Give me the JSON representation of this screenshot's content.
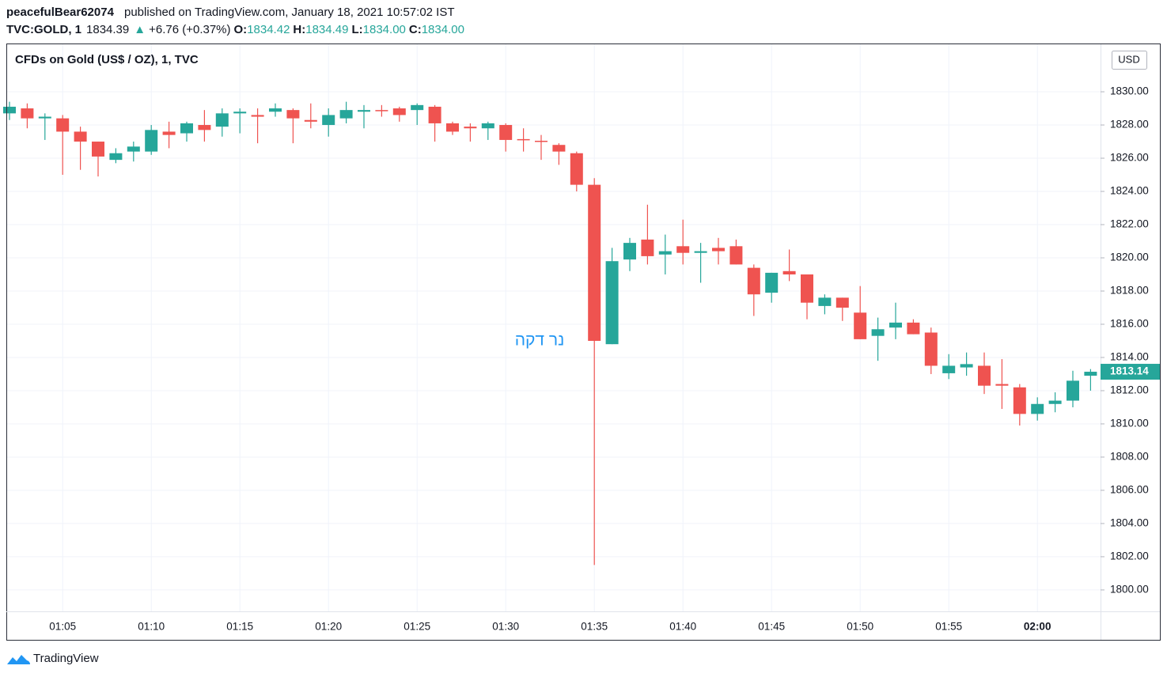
{
  "header": {
    "author": "peacefulBear62074",
    "published": "published on TradingView.com, January 18, 2021 10:57:02 IST",
    "symbol": "TVC:GOLD, 1",
    "price": "1834.39",
    "change": "+6.76 (+0.37%)",
    "ohlc": [
      {
        "key": "O:",
        "value": "1834.42"
      },
      {
        "key": "H:",
        "value": "1834.49"
      },
      {
        "key": "L:",
        "value": "1834.00"
      },
      {
        "key": "C:",
        "value": "1834.00"
      }
    ]
  },
  "footer": "TradingView",
  "chart_data": {
    "type": "candlestick",
    "title": "CFDs on Gold (US$ / OZ), 1, TVC",
    "currency": "USD",
    "annotation": "נר דקה",
    "up_color": "#26a69a",
    "down_color": "#ef5350",
    "grid": true,
    "last_price": 1813.14,
    "categories": [
      null,
      null,
      null,
      "01:05",
      null,
      null,
      null,
      null,
      "01:10",
      null,
      null,
      null,
      null,
      "01:15",
      null,
      null,
      null,
      null,
      "01:20",
      null,
      null,
      null,
      null,
      "01:25",
      null,
      null,
      null,
      null,
      "01:30",
      null,
      null,
      null,
      null,
      "01:35",
      null,
      null,
      null,
      null,
      "01:40",
      null,
      null,
      null,
      null,
      "01:45",
      null,
      null,
      null,
      null,
      "01:50",
      null,
      null,
      null,
      null,
      "01:55",
      null,
      null,
      null,
      null,
      "02:00",
      null,
      null,
      null
    ],
    "series": {
      "open": [
        1828.7,
        1829.0,
        1828.4,
        1828.4,
        1827.6,
        1827.0,
        1825.9,
        1826.4,
        1826.4,
        1827.6,
        1827.5,
        1828.0,
        1827.9,
        1828.7,
        1828.6,
        1828.8,
        1828.9,
        1828.3,
        1828.0,
        1828.4,
        1828.8,
        1828.9,
        1829.0,
        1828.9,
        1829.1,
        1828.1,
        1827.9,
        1827.8,
        1828.0,
        1827.15,
        1827.05,
        1826.8,
        1826.3,
        1824.4,
        1814.8,
        1819.9,
        1821.1,
        1820.2,
        1820.7,
        1820.3,
        1820.6,
        1820.7,
        1819.4,
        1817.9,
        1819.2,
        1819.0,
        1817.1,
        1817.6,
        1816.7,
        1815.3,
        1815.8,
        1816.1,
        1815.5,
        1813.05,
        1813.4,
        1813.5,
        1812.4,
        1812.2,
        1810.6,
        1811.2,
        1811.4,
        1812.9
      ],
      "high": [
        1829.4,
        1829.3,
        1828.7,
        1828.6,
        1827.9,
        1827.0,
        1826.6,
        1827.0,
        1828.0,
        1828.2,
        1828.2,
        1828.9,
        1829.0,
        1829.0,
        1829.0,
        1829.3,
        1829.0,
        1829.3,
        1829.0,
        1829.4,
        1829.2,
        1829.2,
        1829.1,
        1829.3,
        1829.2,
        1828.2,
        1828.1,
        1828.2,
        1828.1,
        1827.8,
        1827.4,
        1826.9,
        1826.4,
        1824.8,
        1820.6,
        1821.2,
        1823.2,
        1821.4,
        1822.3,
        1820.9,
        1821.2,
        1821.1,
        1819.6,
        1819.1,
        1820.5,
        1819.0,
        1817.8,
        1817.6,
        1818.3,
        1816.4,
        1817.3,
        1816.3,
        1815.8,
        1814.2,
        1814.3,
        1814.3,
        1813.9,
        1812.4,
        1811.6,
        1811.9,
        1813.2,
        1813.3
      ],
      "low": [
        1828.3,
        1827.8,
        1827.1,
        1825.0,
        1825.3,
        1824.9,
        1825.7,
        1825.8,
        1826.2,
        1826.6,
        1827.0,
        1827.0,
        1827.3,
        1827.5,
        1826.9,
        1828.5,
        1826.9,
        1827.8,
        1827.3,
        1828.1,
        1827.8,
        1828.5,
        1828.2,
        1828.0,
        1827.0,
        1827.4,
        1827.0,
        1827.1,
        1826.4,
        1826.4,
        1825.9,
        1825.6,
        1824.0,
        1801.5,
        1814.8,
        1819.2,
        1819.6,
        1819.0,
        1819.6,
        1818.5,
        1819.6,
        1819.6,
        1816.5,
        1817.3,
        1818.6,
        1816.3,
        1816.6,
        1816.2,
        1815.1,
        1813.8,
        1815.1,
        1815.4,
        1813.0,
        1812.7,
        1812.9,
        1811.8,
        1810.9,
        1809.9,
        1810.2,
        1810.7,
        1811.0,
        1812.0
      ],
      "close": [
        1829.1,
        1828.4,
        1828.5,
        1827.6,
        1827.0,
        1826.1,
        1826.3,
        1826.7,
        1827.7,
        1827.4,
        1828.1,
        1827.7,
        1828.7,
        1828.8,
        1828.5,
        1829.0,
        1828.4,
        1828.2,
        1828.6,
        1828.9,
        1828.9,
        1828.85,
        1828.6,
        1829.2,
        1828.1,
        1827.6,
        1827.8,
        1828.1,
        1827.1,
        1827.1,
        1827.0,
        1826.4,
        1824.4,
        1815.0,
        1819.8,
        1820.9,
        1820.1,
        1820.4,
        1820.3,
        1820.4,
        1820.4,
        1819.6,
        1817.8,
        1819.1,
        1819.0,
        1817.3,
        1817.6,
        1817.0,
        1815.1,
        1815.7,
        1816.1,
        1815.4,
        1813.5,
        1813.5,
        1813.6,
        1812.3,
        1812.3,
        1810.6,
        1811.2,
        1811.4,
        1812.6,
        1813.14
      ]
    },
    "ylim": [
      1798.71,
      1832.86
    ],
    "yticks": [
      {
        "value": 1800,
        "label": "1800.00"
      },
      {
        "value": 1802,
        "label": "1802.00"
      },
      {
        "value": 1804,
        "label": "1804.00"
      },
      {
        "value": 1806,
        "label": "1806.00"
      },
      {
        "value": 1808,
        "label": "1808.00"
      },
      {
        "value": 1810,
        "label": "1810.00"
      },
      {
        "value": 1812,
        "label": "1812.00"
      },
      {
        "value": 1814,
        "label": "1814.00"
      },
      {
        "value": 1816,
        "label": "1816.00"
      },
      {
        "value": 1818,
        "label": "1818.00"
      },
      {
        "value": 1820,
        "label": "1820.00"
      },
      {
        "value": 1822,
        "label": "1822.00"
      },
      {
        "value": 1824,
        "label": "1824.00"
      },
      {
        "value": 1826,
        "label": "1826.00"
      },
      {
        "value": 1828,
        "label": "1828.00"
      },
      {
        "value": 1830,
        "label": "1830.00"
      }
    ]
  }
}
